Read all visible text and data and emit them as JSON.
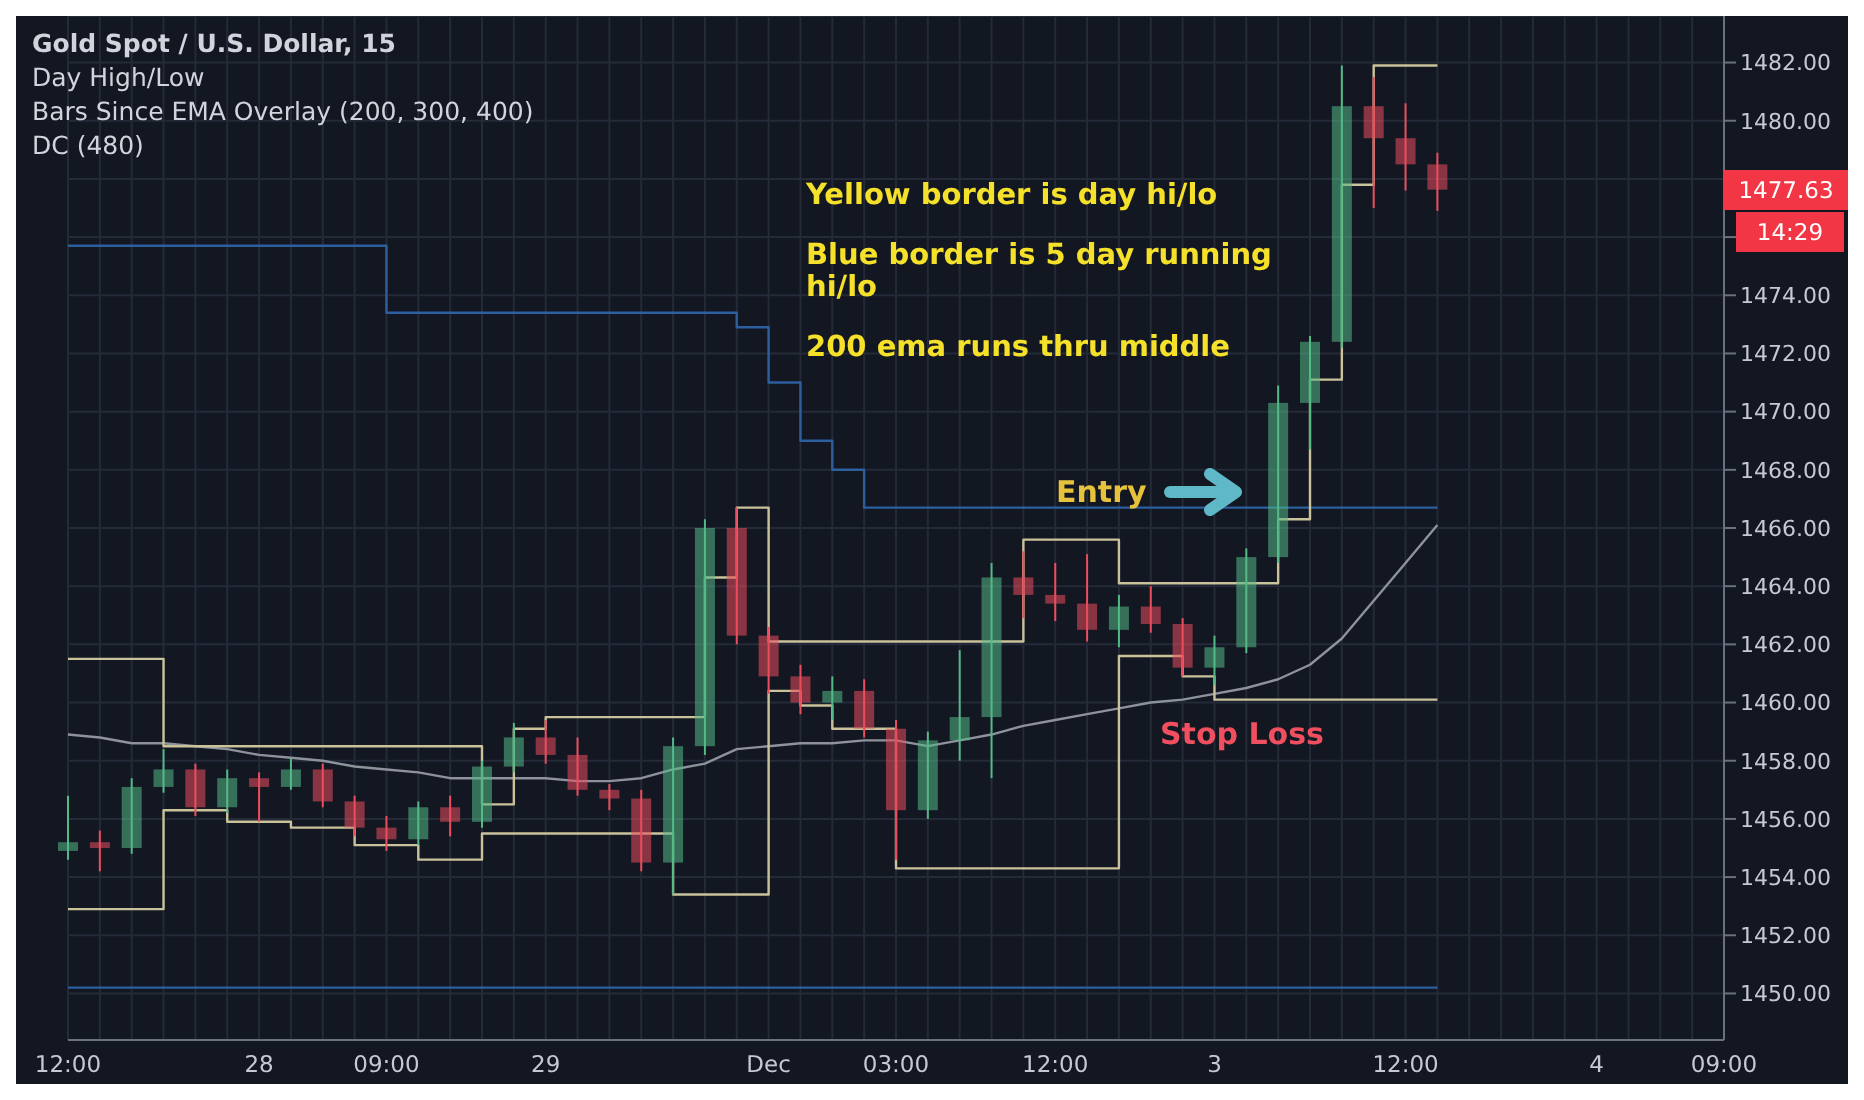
{
  "chart_data": {
    "type": "candlestick",
    "title": "Gold Spot / U.S. Dollar, 15",
    "categories": [
      "12:00",
      null,
      null,
      null,
      null,
      null,
      "28",
      null,
      null,
      null,
      "09:00",
      null,
      null,
      null,
      null,
      "29",
      null,
      null,
      null,
      null,
      null,
      null,
      "Dec",
      null,
      null,
      null,
      "03:00",
      null,
      null,
      null,
      null,
      "12:00",
      null,
      null,
      null,
      null,
      "3",
      null,
      null,
      null,
      null,
      null,
      "12:00",
      null,
      null,
      null,
      null,
      null,
      "4",
      null,
      null,
      null,
      "09:00"
    ],
    "ohlc": [
      [
        1454.9,
        1456.8,
        1454.6,
        1455.2
      ],
      [
        1455.2,
        1455.6,
        1454.2,
        1455.0
      ],
      [
        1455.0,
        1457.4,
        1454.8,
        1457.1
      ],
      [
        1457.1,
        1458.4,
        1456.9,
        1457.7
      ],
      [
        1457.7,
        1457.9,
        1456.1,
        1456.4
      ],
      [
        1456.4,
        1457.7,
        1456.2,
        1457.4
      ],
      [
        1457.4,
        1457.6,
        1455.9,
        1457.1
      ],
      [
        1457.1,
        1458.1,
        1457.0,
        1457.7
      ],
      [
        1457.7,
        1457.9,
        1456.4,
        1456.6
      ],
      [
        1456.6,
        1456.8,
        1455.4,
        1455.7
      ],
      [
        1455.7,
        1456.1,
        1454.9,
        1455.3
      ],
      [
        1455.3,
        1456.6,
        1455.1,
        1456.4
      ],
      [
        1456.4,
        1456.8,
        1455.4,
        1455.9
      ],
      [
        1455.9,
        1458.0,
        1455.7,
        1457.8
      ],
      [
        1457.8,
        1459.3,
        1457.6,
        1458.8
      ],
      [
        1458.8,
        1459.4,
        1457.9,
        1458.2
      ],
      [
        1458.2,
        1458.8,
        1456.8,
        1457.0
      ],
      [
        1457.0,
        1457.2,
        1456.3,
        1456.7
      ],
      [
        1456.7,
        1457.0,
        1454.2,
        1454.5
      ],
      [
        1454.5,
        1458.8,
        1453.4,
        1458.5
      ],
      [
        1458.5,
        1466.3,
        1458.2,
        1466.0
      ],
      [
        1466.0,
        1466.7,
        1462.0,
        1462.3
      ],
      [
        1462.3,
        1462.6,
        1460.3,
        1460.9
      ],
      [
        1460.9,
        1461.3,
        1459.6,
        1460.0
      ],
      [
        1460.0,
        1460.9,
        1459.4,
        1460.4
      ],
      [
        1460.4,
        1460.8,
        1458.8,
        1459.1
      ],
      [
        1459.1,
        1459.4,
        1454.6,
        1456.3
      ],
      [
        1456.3,
        1459.0,
        1456.0,
        1458.7
      ],
      [
        1458.7,
        1461.8,
        1458.0,
        1459.5
      ],
      [
        1459.5,
        1464.8,
        1457.4,
        1464.3
      ],
      [
        1464.3,
        1465.2,
        1462.9,
        1463.7
      ],
      [
        1463.7,
        1464.8,
        1462.8,
        1463.4
      ],
      [
        1463.4,
        1465.1,
        1462.1,
        1462.5
      ],
      [
        1462.5,
        1463.7,
        1461.9,
        1463.3
      ],
      [
        1463.3,
        1464.0,
        1462.4,
        1462.7
      ],
      [
        1462.7,
        1462.9,
        1460.9,
        1461.2
      ],
      [
        1461.2,
        1462.3,
        1460.6,
        1461.9
      ],
      [
        1461.9,
        1465.3,
        1461.7,
        1465.0
      ],
      [
        1465.0,
        1470.9,
        1464.8,
        1470.3
      ],
      [
        1470.3,
        1472.6,
        1468.7,
        1472.4
      ],
      [
        1472.4,
        1481.9,
        1472.2,
        1480.5
      ],
      [
        1480.5,
        1481.5,
        1477.0,
        1479.4
      ],
      [
        1479.4,
        1480.6,
        1477.6,
        1478.5
      ],
      [
        1478.5,
        1478.9,
        1476.9,
        1477.63
      ],
      null,
      null,
      null,
      null,
      null,
      null,
      null,
      null,
      null
    ],
    "series": [
      {
        "type": "line",
        "color": "#8d929c",
        "values": [
          1458.9,
          1458.8,
          1458.6,
          1458.6,
          1458.5,
          1458.4,
          1458.2,
          1458.1,
          1458.0,
          1457.8,
          1457.7,
          1457.6,
          1457.4,
          1457.4,
          1457.4,
          1457.4,
          1457.3,
          1457.3,
          1457.4,
          1457.7,
          1457.9,
          1458.4,
          1458.5,
          1458.6,
          1458.6,
          1458.7,
          1458.7,
          1458.5,
          1458.7,
          1458.9,
          1459.2,
          1459.4,
          1459.6,
          1459.8,
          1460.0,
          1460.1,
          1460.3,
          1460.5,
          1460.8,
          1461.3,
          1462.2,
          1463.5,
          1464.8,
          1466.1,
          null,
          null,
          null,
          null,
          null,
          null,
          null,
          null,
          null
        ]
      },
      {
        "type": "step",
        "color": "#2b5f9e",
        "values": [
          1475.7,
          1475.7,
          1475.7,
          1475.7,
          1475.7,
          1475.7,
          1475.7,
          1475.7,
          1475.7,
          1475.7,
          1473.4,
          1473.4,
          1473.4,
          1473.4,
          1473.4,
          1473.4,
          1473.4,
          1473.4,
          1473.4,
          1473.4,
          1473.4,
          1472.9,
          1471.0,
          1469.0,
          1468.0,
          1466.7,
          1466.7,
          1466.7,
          1466.7,
          1466.7,
          1466.7,
          1466.7,
          1466.7,
          1466.7,
          1466.7,
          1466.7,
          1466.7,
          1466.7,
          1466.7,
          1466.7,
          1466.7,
          1466.7,
          1466.7,
          1466.7,
          null,
          null,
          null,
          null,
          null,
          null,
          null,
          null,
          null
        ]
      },
      {
        "type": "step",
        "color": "#2b5f9e",
        "values": [
          1450.2,
          1450.2,
          1450.2,
          1450.2,
          1450.2,
          1450.2,
          1450.2,
          1450.2,
          1450.2,
          1450.2,
          1450.2,
          1450.2,
          1450.2,
          1450.2,
          1450.2,
          1450.2,
          1450.2,
          1450.2,
          1450.2,
          1450.2,
          1450.2,
          1450.2,
          1450.2,
          1450.2,
          1450.2,
          1450.2,
          1450.2,
          1450.2,
          1450.2,
          1450.2,
          1450.2,
          1450.2,
          1450.2,
          1450.2,
          1450.2,
          1450.2,
          1450.2,
          1450.2,
          1450.2,
          1450.2,
          1450.2,
          1450.2,
          1450.2,
          1450.2,
          null,
          null,
          null,
          null,
          null,
          null,
          null,
          null,
          null
        ]
      },
      {
        "type": "step",
        "color": "#c9c29a",
        "values": [
          1461.5,
          1461.5,
          1461.5,
          1458.5,
          1458.5,
          1458.5,
          1458.5,
          1458.5,
          1458.5,
          1458.5,
          1458.5,
          1458.5,
          1458.5,
          1456.5,
          1459.1,
          1459.5,
          1459.5,
          1459.5,
          1459.5,
          1459.5,
          1464.3,
          1466.7,
          1462.1,
          1462.1,
          1462.1,
          1462.1,
          1462.1,
          1462.1,
          1462.1,
          1462.1,
          1465.6,
          1465.6,
          1465.6,
          1464.1,
          1464.1,
          1464.1,
          1464.1,
          1464.1,
          1466.3,
          1471.1,
          1477.8,
          1481.9,
          1481.9,
          1481.9,
          null,
          null,
          null,
          null,
          null,
          null,
          null,
          null,
          null
        ]
      },
      {
        "type": "step",
        "color": "#c9c29a",
        "values": [
          1452.9,
          1452.9,
          1452.9,
          1456.3,
          1456.3,
          1455.9,
          1455.9,
          1455.7,
          1455.7,
          1455.1,
          1455.1,
          1454.6,
          1454.6,
          1455.5,
          1455.5,
          1455.5,
          1455.5,
          1455.5,
          1455.5,
          1453.4,
          1453.4,
          1453.4,
          1460.4,
          1459.9,
          1459.1,
          1459.1,
          1454.3,
          1454.3,
          1454.3,
          1454.3,
          1454.3,
          1454.3,
          1454.3,
          1461.6,
          1461.6,
          1460.9,
          1460.1,
          1460.1,
          1460.1,
          1460.1,
          1460.1,
          1460.1,
          1460.1,
          1460.1,
          null,
          null,
          null,
          null,
          null,
          null,
          null,
          null,
          null
        ]
      }
    ],
    "ylim": [
      1448.4,
      1483.6
    ],
    "yticks": [
      {
        "value": 1450,
        "label": "1450.00"
      },
      {
        "value": 1452,
        "label": "1452.00"
      },
      {
        "value": 1454,
        "label": "1454.00"
      },
      {
        "value": 1456,
        "label": "1456.00"
      },
      {
        "value": 1458,
        "label": "1458.00"
      },
      {
        "value": 1460,
        "label": "1460.00"
      },
      {
        "value": 1462,
        "label": "1462.00"
      },
      {
        "value": 1464,
        "label": "1464.00"
      },
      {
        "value": 1466,
        "label": "1466.00"
      },
      {
        "value": 1468,
        "label": "1468.00"
      },
      {
        "value": 1470,
        "label": "1470.00"
      },
      {
        "value": 1472,
        "label": "1472.00"
      },
      {
        "value": 1474,
        "label": "1474.00"
      },
      {
        "value": 1476,
        "label": null
      },
      {
        "value": 1478,
        "label": null
      },
      {
        "value": 1480,
        "label": "1480.00"
      },
      {
        "value": 1482,
        "label": "1482.00"
      }
    ],
    "grid": true,
    "legend": false,
    "annotations": [
      "Day High/Low",
      "Bars Since EMA Overlay (200, 300, 400)",
      "DC (480)",
      "Yellow border is day hi/lo",
      "Blue border is 5 day running hi/lo",
      "200 ema runs thru middle",
      "Entry",
      {
        "text": "Stop Loss",
        "y": 1460.1
      },
      "1477.63",
      "14:29"
    ]
  }
}
